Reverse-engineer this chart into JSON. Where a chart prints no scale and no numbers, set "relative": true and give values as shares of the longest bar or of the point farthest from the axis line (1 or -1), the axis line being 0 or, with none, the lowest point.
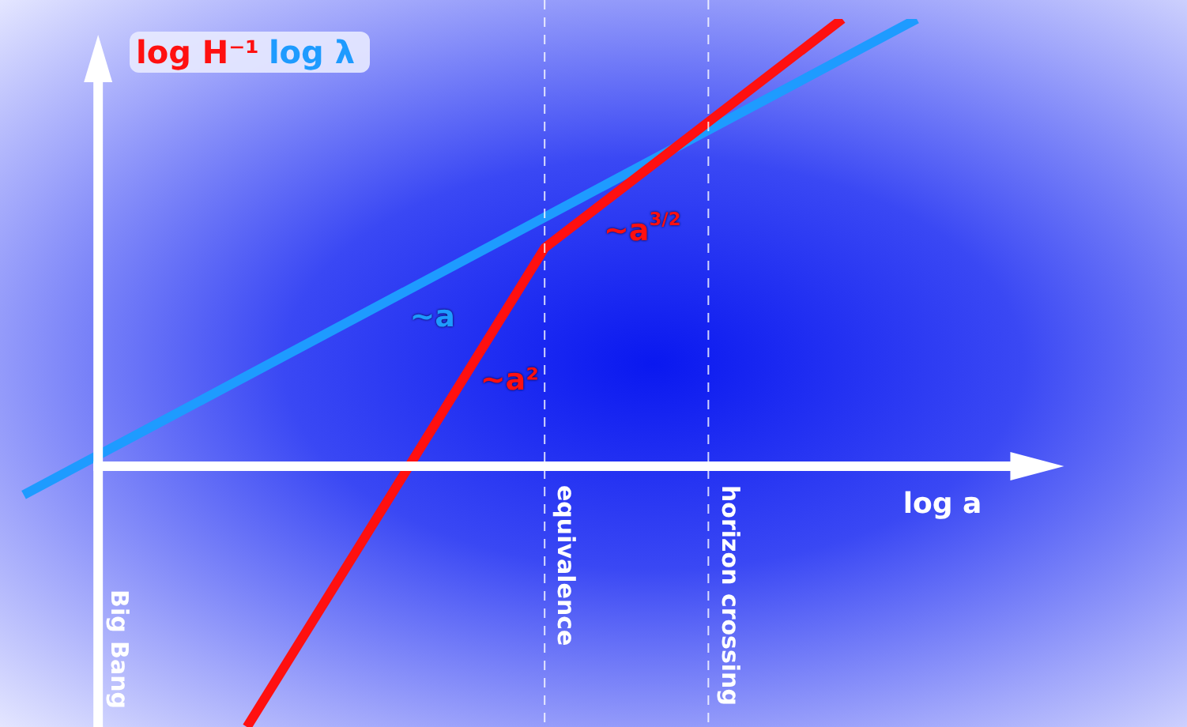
{
  "chart_data": {
    "type": "line",
    "relative": true,
    "xlabel": "log a",
    "marker": "none",
    "line_style": "solid",
    "legend": "top left",
    "categories": [
      null,
      null,
      null,
      null,
      null,
      null,
      null,
      null,
      null,
      null,
      null,
      null,
      null
    ],
    "series": [
      {
        "name": "log H⁻¹",
        "color": "#ff1010",
        "values": [
          null,
          null,
          null,
          -0.583,
          null,
          null,
          null,
          0.488,
          null,
          null,
          null,
          1,
          null
        ]
      },
      {
        "name": "log λ",
        "color": "#1e9bff",
        "values": [
          -0.064,
          null,
          null,
          null,
          null,
          null,
          null,
          null,
          null,
          null,
          null,
          null,
          1
        ]
      }
    ],
    "annotations": [
      "~a²",
      "~a$^{3/2}$",
      "~a",
      "equivalence",
      "horizon crossing",
      "Big Bang"
    ]
  }
}
